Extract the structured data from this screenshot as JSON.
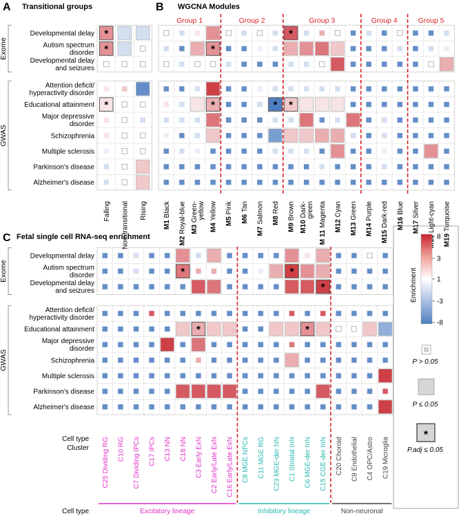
{
  "panels": {
    "A": {
      "letter": "A",
      "title": "Transitional groups"
    },
    "B": {
      "letter": "B",
      "title": "WGCNA Modules"
    },
    "C": {
      "letter": "C",
      "title": "Fetal single cell RNA-seq enrichment"
    }
  },
  "row_groups": {
    "exome": "Exome",
    "gwas": "GWAS"
  },
  "exome_rows_AB": [
    "Developmental delay",
    "Autism spectrum|disorder",
    "Developmental delay|and seizures"
  ],
  "gwas_rows": [
    "Attention deficit/|hyperactivity disorder",
    "Educational attainment",
    "Major depressive|disorder",
    "Schizophrenia",
    "Multiple sclerosis",
    "Parkinson's disease",
    "Alzheimer's disease"
  ],
  "exome_rows_C": [
    "Developmental delay",
    "Autism spectrum|disorder",
    "Developmental delay|and seizures"
  ],
  "module_groups": [
    "Group 1",
    "Group 2",
    "Group 3",
    "Group 4",
    "Group 5"
  ],
  "modules": [
    {
      "id": "M1",
      "name": "Black"
    },
    {
      "id": "M2",
      "name": "Royal-blue"
    },
    {
      "id": "M3",
      "name": "Green-|yellow"
    },
    {
      "id": "M4",
      "name": "Yellow"
    },
    {
      "id": "M5",
      "name": "Pink"
    },
    {
      "id": "M6",
      "name": "Tan"
    },
    {
      "id": "M7",
      "name": "Salmon"
    },
    {
      "id": "M8",
      "name": "Red"
    },
    {
      "id": "M9",
      "name": "Brown"
    },
    {
      "id": "M10",
      "name": "Dark-|green"
    },
    {
      "id": "M 11",
      "name": "Magenta"
    },
    {
      "id": "M12",
      "name": "Cyan"
    },
    {
      "id": "M13",
      "name": "Green"
    },
    {
      "id": "M14",
      "name": "Purple"
    },
    {
      "id": "M15",
      "name": "Dark-red"
    },
    {
      "id": "M16",
      "name": "Blue"
    },
    {
      "id": "M17",
      "name": "Silver"
    },
    {
      "id": "M18",
      "name": "Light-cyan"
    },
    {
      "id": "M19",
      "name": "Turquoise"
    }
  ],
  "transitional_cols": [
    "Falling",
    "Non-transitional",
    "Rising"
  ],
  "cell_clusters": [
    {
      "label": "C25 Dividing RG",
      "lineage": "excit"
    },
    {
      "label": "C10 RG",
      "lineage": "excit"
    },
    {
      "label": "C7 Dividing IPCs",
      "lineage": "excit"
    },
    {
      "label": "C17 IPCs",
      "lineage": "excit"
    },
    {
      "label": "C13 NN",
      "lineage": "excit"
    },
    {
      "label": "C18 NN",
      "lineage": "excit"
    },
    {
      "label": "C3 Early ExN",
      "lineage": "excit"
    },
    {
      "label": "C2 Early/Late ExN",
      "lineage": "excit"
    },
    {
      "label": "C16 Early/Late ExN",
      "lineage": "excit"
    },
    {
      "label": "C8 MGE NPCs",
      "lineage": "inhib"
    },
    {
      "label": "C11 MGE RG",
      "lineage": "inhib"
    },
    {
      "label": "C23 MGE-der NN",
      "lineage": "inhib"
    },
    {
      "label": "C1 Striatal InN",
      "lineage": "inhib"
    },
    {
      "label": "C6 MGE-der InN",
      "lineage": "inhib"
    },
    {
      "label": "C15 CGE-der InN",
      "lineage": "inhib"
    },
    {
      "label": "C20 Choroid",
      "lineage": "nonneur"
    },
    {
      "label": "C9 Endothelial",
      "lineage": "nonneur"
    },
    {
      "label": "C4 OPC/Astro",
      "lineage": "nonneur"
    },
    {
      "label": "C19 Microglia",
      "lineage": "nonneur"
    }
  ],
  "axis_captions": {
    "cell_type_cluster_1": "Cell type",
    "cell_type_cluster_2": "Cluster",
    "cell_type": "Cell type"
  },
  "lineages": [
    {
      "key": "excit",
      "label": "Excitatory lineage"
    },
    {
      "key": "inhib",
      "label": "Inhibitory lineage"
    },
    {
      "key": "nonneur",
      "label": "Non-neuronal"
    }
  ],
  "legend": {
    "title": "Enrichment",
    "ticks": [
      "8",
      "3",
      "1",
      "-3",
      "-8"
    ],
    "p_gt": "P > 0.05",
    "p_le": "P ≤ 0.05",
    "p_adj": "P.adj ≤ 0.05",
    "star": "*"
  },
  "colors": {
    "red_max": "#c8232c",
    "blue_max": "#4f7ec0",
    "white": "#ffffff",
    "excitatory": "#e02fc8",
    "inhibitory": "#27b8b0",
    "non_neuronal": "#444444",
    "group_red": "#d81f26",
    "grid": "#cfcfcf"
  },
  "chart_data": [
    {
      "type": "heatmap",
      "title": "Transitional groups",
      "columns": [
        "Falling",
        "Non-transitional",
        "Rising"
      ],
      "rows": [
        "Developmental delay",
        "Autism spectrum disorder",
        "Developmental delay and seizures",
        "Attention deficit/hyperactivity disorder",
        "Educational attainment",
        "Major depressive disorder",
        "Schizophrenia",
        "Multiple sclerosis",
        "Parkinson's disease",
        "Alzheimer's disease"
      ],
      "value_legend": "enrichment -8..8; sig 0=P>0.05, 1=P<=0.05, 2=P.adj<=0.05",
      "values": [
        [
          4,
          -2,
          -2
        ],
        [
          4,
          -2,
          0
        ],
        [
          0,
          0,
          0
        ],
        [
          1,
          2,
          -7
        ],
        [
          1,
          0,
          0
        ],
        [
          1,
          0,
          -2
        ],
        [
          1,
          0,
          0
        ],
        [
          -1,
          0,
          0
        ],
        [
          -2,
          0,
          2
        ],
        [
          -2,
          0,
          2
        ]
      ],
      "sig": [
        [
          2,
          1,
          1
        ],
        [
          2,
          1,
          0
        ],
        [
          0,
          0,
          0
        ],
        [
          0,
          0,
          1
        ],
        [
          2,
          0,
          0
        ],
        [
          0,
          0,
          0
        ],
        [
          0,
          0,
          0
        ],
        [
          0,
          0,
          0
        ],
        [
          0,
          0,
          1
        ],
        [
          0,
          0,
          1
        ]
      ]
    },
    {
      "type": "heatmap",
      "title": "WGCNA Modules",
      "columns": [
        "M1 Black",
        "M2 Royal-blue",
        "M3 Green-yellow",
        "M4 Yellow",
        "M5 Pink",
        "M6 Tan",
        "M7 Salmon",
        "M8 Red",
        "M9 Brown",
        "M10 Dark-green",
        "M11 Magenta",
        "M12 Cyan",
        "M13 Green",
        "M14 Purple",
        "M15 Dark-red",
        "M16 Blue",
        "M17 Silver",
        "M18 Light-cyan",
        "M19 Turquoise"
      ],
      "column_groups": [
        {
          "name": "Group 1",
          "columns": [
            0,
            3
          ]
        },
        {
          "name": "Group 2",
          "columns": [
            4,
            7
          ]
        },
        {
          "name": "Group 3",
          "columns": [
            8,
            12
          ]
        },
        {
          "name": "Group 4",
          "columns": [
            13,
            15
          ]
        },
        {
          "name": "Group 5",
          "columns": [
            16,
            19
          ]
        }
      ],
      "rows": [
        "Developmental delay",
        "Autism spectrum disorder",
        "Developmental delay and seizures",
        "Attention deficit/hyperactivity disorder",
        "Educational attainment",
        "Major depressive disorder",
        "Schizophrenia",
        "Multiple sclerosis",
        "Parkinson's disease",
        "Alzheimer's disease"
      ],
      "values": [
        [
          0,
          -2,
          1,
          4,
          0,
          -2,
          0,
          -2,
          6,
          -2,
          3,
          0,
          -7,
          -2,
          -7,
          0,
          -7,
          -7,
          -2
        ],
        [
          -2,
          -7,
          3,
          4,
          -7,
          -7,
          -1,
          -2,
          3,
          4,
          5,
          2,
          -7,
          -7,
          -7,
          -2,
          -7,
          -2,
          -1
        ],
        [
          0,
          -2,
          0,
          0,
          -2,
          -7,
          -7,
          -7,
          -2,
          -2,
          0,
          6,
          -7,
          -7,
          -7,
          -7,
          -7,
          0,
          3
        ],
        [
          -7,
          -7,
          -2,
          7,
          -7,
          -7,
          -1,
          -2,
          -2,
          -2,
          -2,
          -2,
          -7,
          -7,
          -7,
          -7,
          -7,
          -7,
          -7
        ],
        [
          1,
          -2,
          1,
          3,
          -7,
          -7,
          -2,
          -8,
          2,
          1,
          1,
          1,
          -7,
          -7,
          -7,
          -7,
          -7,
          -7,
          -7
        ],
        [
          -2,
          -2,
          -2,
          5,
          -7,
          -7,
          -7,
          -2,
          -2,
          5,
          -7,
          -2,
          5,
          -7,
          -2,
          -7,
          -7,
          -7,
          -7
        ],
        [
          -1,
          -7,
          -2,
          2,
          -7,
          -7,
          -7,
          -6,
          2,
          2,
          3,
          3,
          -2,
          -7,
          -2,
          -7,
          -7,
          -7,
          -7
        ],
        [
          -7,
          -2,
          -1,
          -7,
          -7,
          -7,
          -7,
          -2,
          -2,
          -2,
          -7,
          4,
          -7,
          -7,
          -1,
          -7,
          -7,
          4,
          -7
        ],
        [
          -7,
          -7,
          -7,
          -7,
          -7,
          -7,
          -7,
          -7,
          -7,
          -7,
          -2,
          -7,
          -7,
          -7,
          -2,
          -7,
          -7,
          -7,
          -7
        ],
        [
          -7,
          -7,
          -7,
          -7,
          -7,
          -7,
          -7,
          -7,
          -7,
          -7,
          -7,
          -7,
          -7,
          -7,
          -7,
          -7,
          -7,
          -7,
          -7
        ]
      ],
      "sig": [
        [
          0,
          0,
          0,
          1,
          0,
          0,
          0,
          0,
          2,
          0,
          0,
          0,
          0,
          0,
          0,
          0,
          0,
          0,
          0
        ],
        [
          0,
          0,
          1,
          2,
          0,
          0,
          0,
          0,
          1,
          1,
          1,
          1,
          0,
          0,
          0,
          0,
          0,
          0,
          0
        ],
        [
          0,
          0,
          0,
          0,
          0,
          0,
          0,
          0,
          0,
          0,
          0,
          1,
          0,
          0,
          0,
          0,
          0,
          0,
          1
        ],
        [
          0,
          0,
          0,
          1,
          0,
          0,
          0,
          0,
          0,
          0,
          0,
          0,
          0,
          0,
          0,
          0,
          0,
          0,
          0
        ],
        [
          0,
          0,
          1,
          2,
          0,
          0,
          0,
          2,
          2,
          1,
          1,
          1,
          0,
          0,
          0,
          0,
          0,
          0,
          0
        ],
        [
          0,
          0,
          0,
          1,
          0,
          0,
          0,
          0,
          0,
          1,
          0,
          0,
          1,
          0,
          0,
          0,
          0,
          0,
          0
        ],
        [
          0,
          0,
          0,
          1,
          0,
          0,
          0,
          1,
          1,
          1,
          1,
          1,
          0,
          0,
          0,
          0,
          0,
          0,
          0
        ],
        [
          0,
          0,
          0,
          0,
          0,
          0,
          0,
          0,
          0,
          0,
          0,
          1,
          0,
          0,
          0,
          0,
          0,
          1,
          0
        ],
        [
          0,
          0,
          0,
          0,
          0,
          0,
          0,
          0,
          0,
          0,
          0,
          0,
          0,
          0,
          0,
          0,
          0,
          0,
          0
        ],
        [
          0,
          0,
          0,
          0,
          0,
          0,
          0,
          0,
          0,
          0,
          0,
          0,
          0,
          0,
          0,
          0,
          0,
          0,
          0
        ]
      ]
    },
    {
      "type": "heatmap",
      "title": "Fetal single cell RNA-seq enrichment",
      "columns": [
        "C25 Dividing RG",
        "C10 RG",
        "C7 Dividing IPCs",
        "C17 IPCs",
        "C13 NN",
        "C18 NN",
        "C3 Early ExN",
        "C2 Early/Late ExN",
        "C16 Early/Late ExN",
        "C8 MGE NPCs",
        "C11 MGE RG",
        "C23 MGE-der NN",
        "C1 Striatal InN",
        "C6 MGE-der InN",
        "C15 CGE-der InN",
        "C20 Choroid",
        "C9 Endothelial",
        "C4 OPC/Astro",
        "C19 Microglia"
      ],
      "rows": [
        "Developmental delay",
        "Autism spectrum disorder",
        "Developmental delay and seizures",
        "Attention deficit/hyperactivity disorder",
        "Educational attainment",
        "Major depressive disorder",
        "Schizophrenia",
        "Multiple sclerosis",
        "Parkinson's disease",
        "Alzheimer's disease"
      ],
      "values": [
        [
          -7,
          -7,
          -2,
          -7,
          -7,
          4,
          -2,
          3,
          -7,
          -7,
          -7,
          -7,
          4,
          1,
          3,
          -7,
          -7,
          0,
          -7
        ],
        [
          -7,
          -7,
          -2,
          -7,
          -7,
          5,
          3,
          3,
          -7,
          -7,
          -1,
          3,
          7,
          4,
          3,
          -7,
          -7,
          -7,
          -7
        ],
        [
          -7,
          -7,
          -7,
          -7,
          -7,
          -7,
          6,
          5,
          -7,
          -7,
          -7,
          -7,
          6,
          6,
          7,
          -7,
          -7,
          -7,
          -7
        ],
        [
          -7,
          -7,
          -7,
          6,
          -7,
          -7,
          -7,
          -7,
          -7,
          -7,
          -7,
          -7,
          6,
          -7,
          6,
          -7,
          -7,
          -7,
          -7
        ],
        [
          -7,
          -7,
          -7,
          -7,
          -7,
          2,
          3,
          2,
          2,
          -7,
          -7,
          2,
          2,
          4,
          2,
          0,
          0,
          2,
          -5
        ],
        [
          -7,
          -7,
          -7,
          -7,
          7,
          -7,
          5,
          -7,
          -7,
          -7,
          -7,
          -7,
          5,
          -7,
          -7,
          -7,
          -7,
          -7,
          -7
        ],
        [
          -7,
          -7,
          -7,
          -7,
          -7,
          -7,
          3,
          -7,
          -7,
          -7,
          -7,
          -7,
          3,
          -7,
          -7,
          -7,
          -7,
          -7,
          -7
        ],
        [
          -7,
          -7,
          -7,
          -7,
          -7,
          -7,
          -7,
          -7,
          -7,
          -7,
          -7,
          -7,
          -7,
          -7,
          -7,
          -7,
          -7,
          -7,
          7
        ],
        [
          -7,
          -7,
          -7,
          -7,
          -7,
          6,
          6,
          6,
          6,
          -7,
          -7,
          -7,
          -7,
          -7,
          6,
          -7,
          -7,
          -7,
          6
        ],
        [
          -7,
          -7,
          -7,
          -7,
          -7,
          -7,
          -7,
          -7,
          -7,
          -7,
          -7,
          -7,
          -7,
          -7,
          -7,
          -7,
          -7,
          -7,
          7
        ]
      ],
      "sig": [
        [
          0,
          0,
          0,
          0,
          0,
          1,
          0,
          1,
          0,
          0,
          0,
          0,
          1,
          0,
          1,
          0,
          0,
          0,
          0
        ],
        [
          0,
          0,
          0,
          0,
          0,
          2,
          0,
          0,
          0,
          0,
          0,
          1,
          2,
          1,
          1,
          0,
          0,
          0,
          0
        ],
        [
          0,
          0,
          0,
          0,
          0,
          0,
          1,
          1,
          0,
          0,
          0,
          0,
          1,
          1,
          2,
          0,
          0,
          0,
          0
        ],
        [
          0,
          0,
          0,
          0,
          0,
          0,
          0,
          0,
          0,
          0,
          0,
          0,
          0,
          0,
          0,
          0,
          0,
          0,
          0
        ],
        [
          0,
          0,
          0,
          0,
          0,
          1,
          2,
          1,
          1,
          0,
          0,
          1,
          1,
          2,
          1,
          0,
          0,
          1,
          1
        ],
        [
          0,
          0,
          0,
          0,
          1,
          0,
          1,
          0,
          0,
          0,
          0,
          0,
          0,
          0,
          0,
          0,
          0,
          0,
          0
        ],
        [
          0,
          0,
          0,
          0,
          0,
          0,
          0,
          0,
          0,
          0,
          0,
          0,
          1,
          0,
          0,
          0,
          0,
          0,
          0
        ],
        [
          0,
          0,
          0,
          0,
          0,
          0,
          0,
          0,
          0,
          0,
          0,
          0,
          0,
          0,
          0,
          0,
          0,
          0,
          1
        ],
        [
          0,
          0,
          0,
          0,
          0,
          1,
          1,
          1,
          1,
          0,
          0,
          0,
          0,
          0,
          1,
          0,
          0,
          0,
          0
        ],
        [
          0,
          0,
          0,
          0,
          0,
          0,
          0,
          0,
          0,
          0,
          0,
          0,
          0,
          0,
          0,
          0,
          0,
          0,
          1
        ]
      ]
    }
  ]
}
